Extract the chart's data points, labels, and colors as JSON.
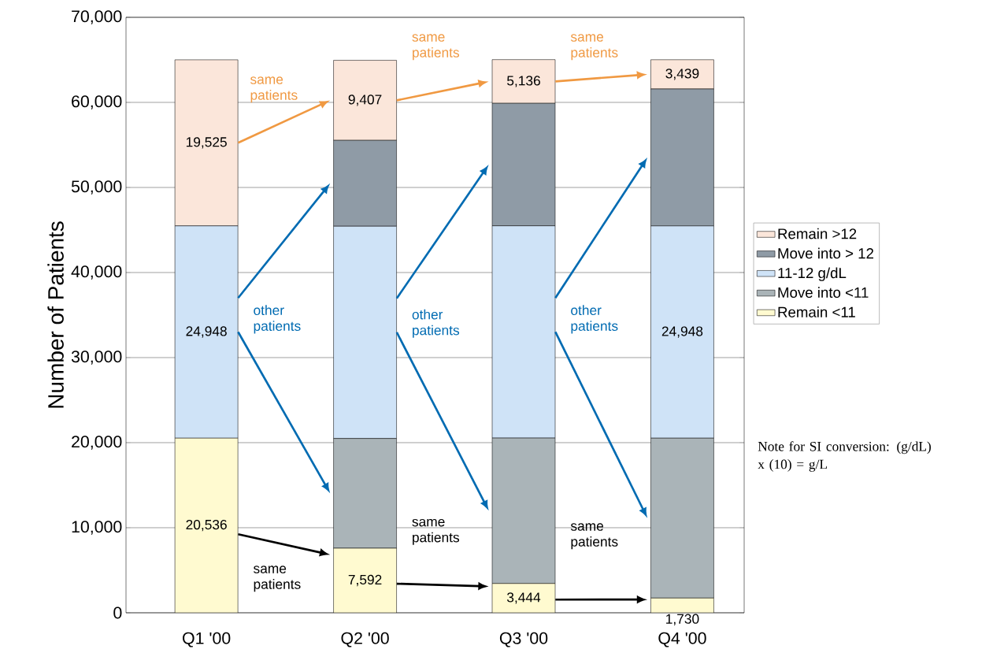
{
  "chart_data": {
    "type": "bar",
    "stacked": true,
    "ylabel": "Number of Patients",
    "categories": [
      "Q1 '00",
      "Q2 '00",
      "Q3 '00",
      "Q4 '00"
    ],
    "series": [
      {
        "name": "Remain <11",
        "color": "#fffad0",
        "values": [
          20536,
          7592,
          3444,
          1730
        ],
        "value_labels": [
          "20,536",
          "7,592",
          "3,444",
          "1,730"
        ]
      },
      {
        "name": "Move into <11",
        "color": "#aab4b8",
        "values": [
          0,
          12900,
          17100,
          18800
        ],
        "value_labels": [
          null,
          null,
          null,
          null
        ]
      },
      {
        "name": "11-12 g/dL",
        "color": "#cfe3f7",
        "values": [
          24948,
          24948,
          24948,
          24948
        ],
        "value_labels": [
          "24,948",
          null,
          null,
          "24,948"
        ]
      },
      {
        "name": "Move into > 12",
        "color": "#8f9ba6",
        "values": [
          0,
          10100,
          14400,
          16100
        ],
        "value_labels": [
          null,
          null,
          null,
          null
        ]
      },
      {
        "name": "Remain >12",
        "color": "#fbe6da",
        "values": [
          19525,
          9407,
          5136,
          3439
        ],
        "value_labels": [
          "19,525",
          "9,407",
          "5,136",
          "3,439"
        ]
      }
    ],
    "ylim": [
      0,
      70000
    ],
    "yticks": [
      0,
      {
        "value": 10000,
        "label": "10,000"
      },
      {
        "value": 20000,
        "label": "20,000"
      },
      {
        "value": 30000,
        "label": "30,000"
      },
      {
        "value": 40000,
        "label": "40,000"
      },
      {
        "value": 50000,
        "label": "50,000"
      },
      {
        "value": 60000,
        "label": "60,000"
      },
      {
        "value": 70000,
        "label": "70,000"
      }
    ],
    "grid": "y",
    "legend": "right",
    "annotations": [
      "same patients",
      "same patients",
      "same patients",
      "other patients",
      "other patients",
      "other patients",
      "same patients",
      "same patients",
      "same patients",
      "Note for SI conversion: (g/dL) x (10) = g/L"
    ]
  }
}
